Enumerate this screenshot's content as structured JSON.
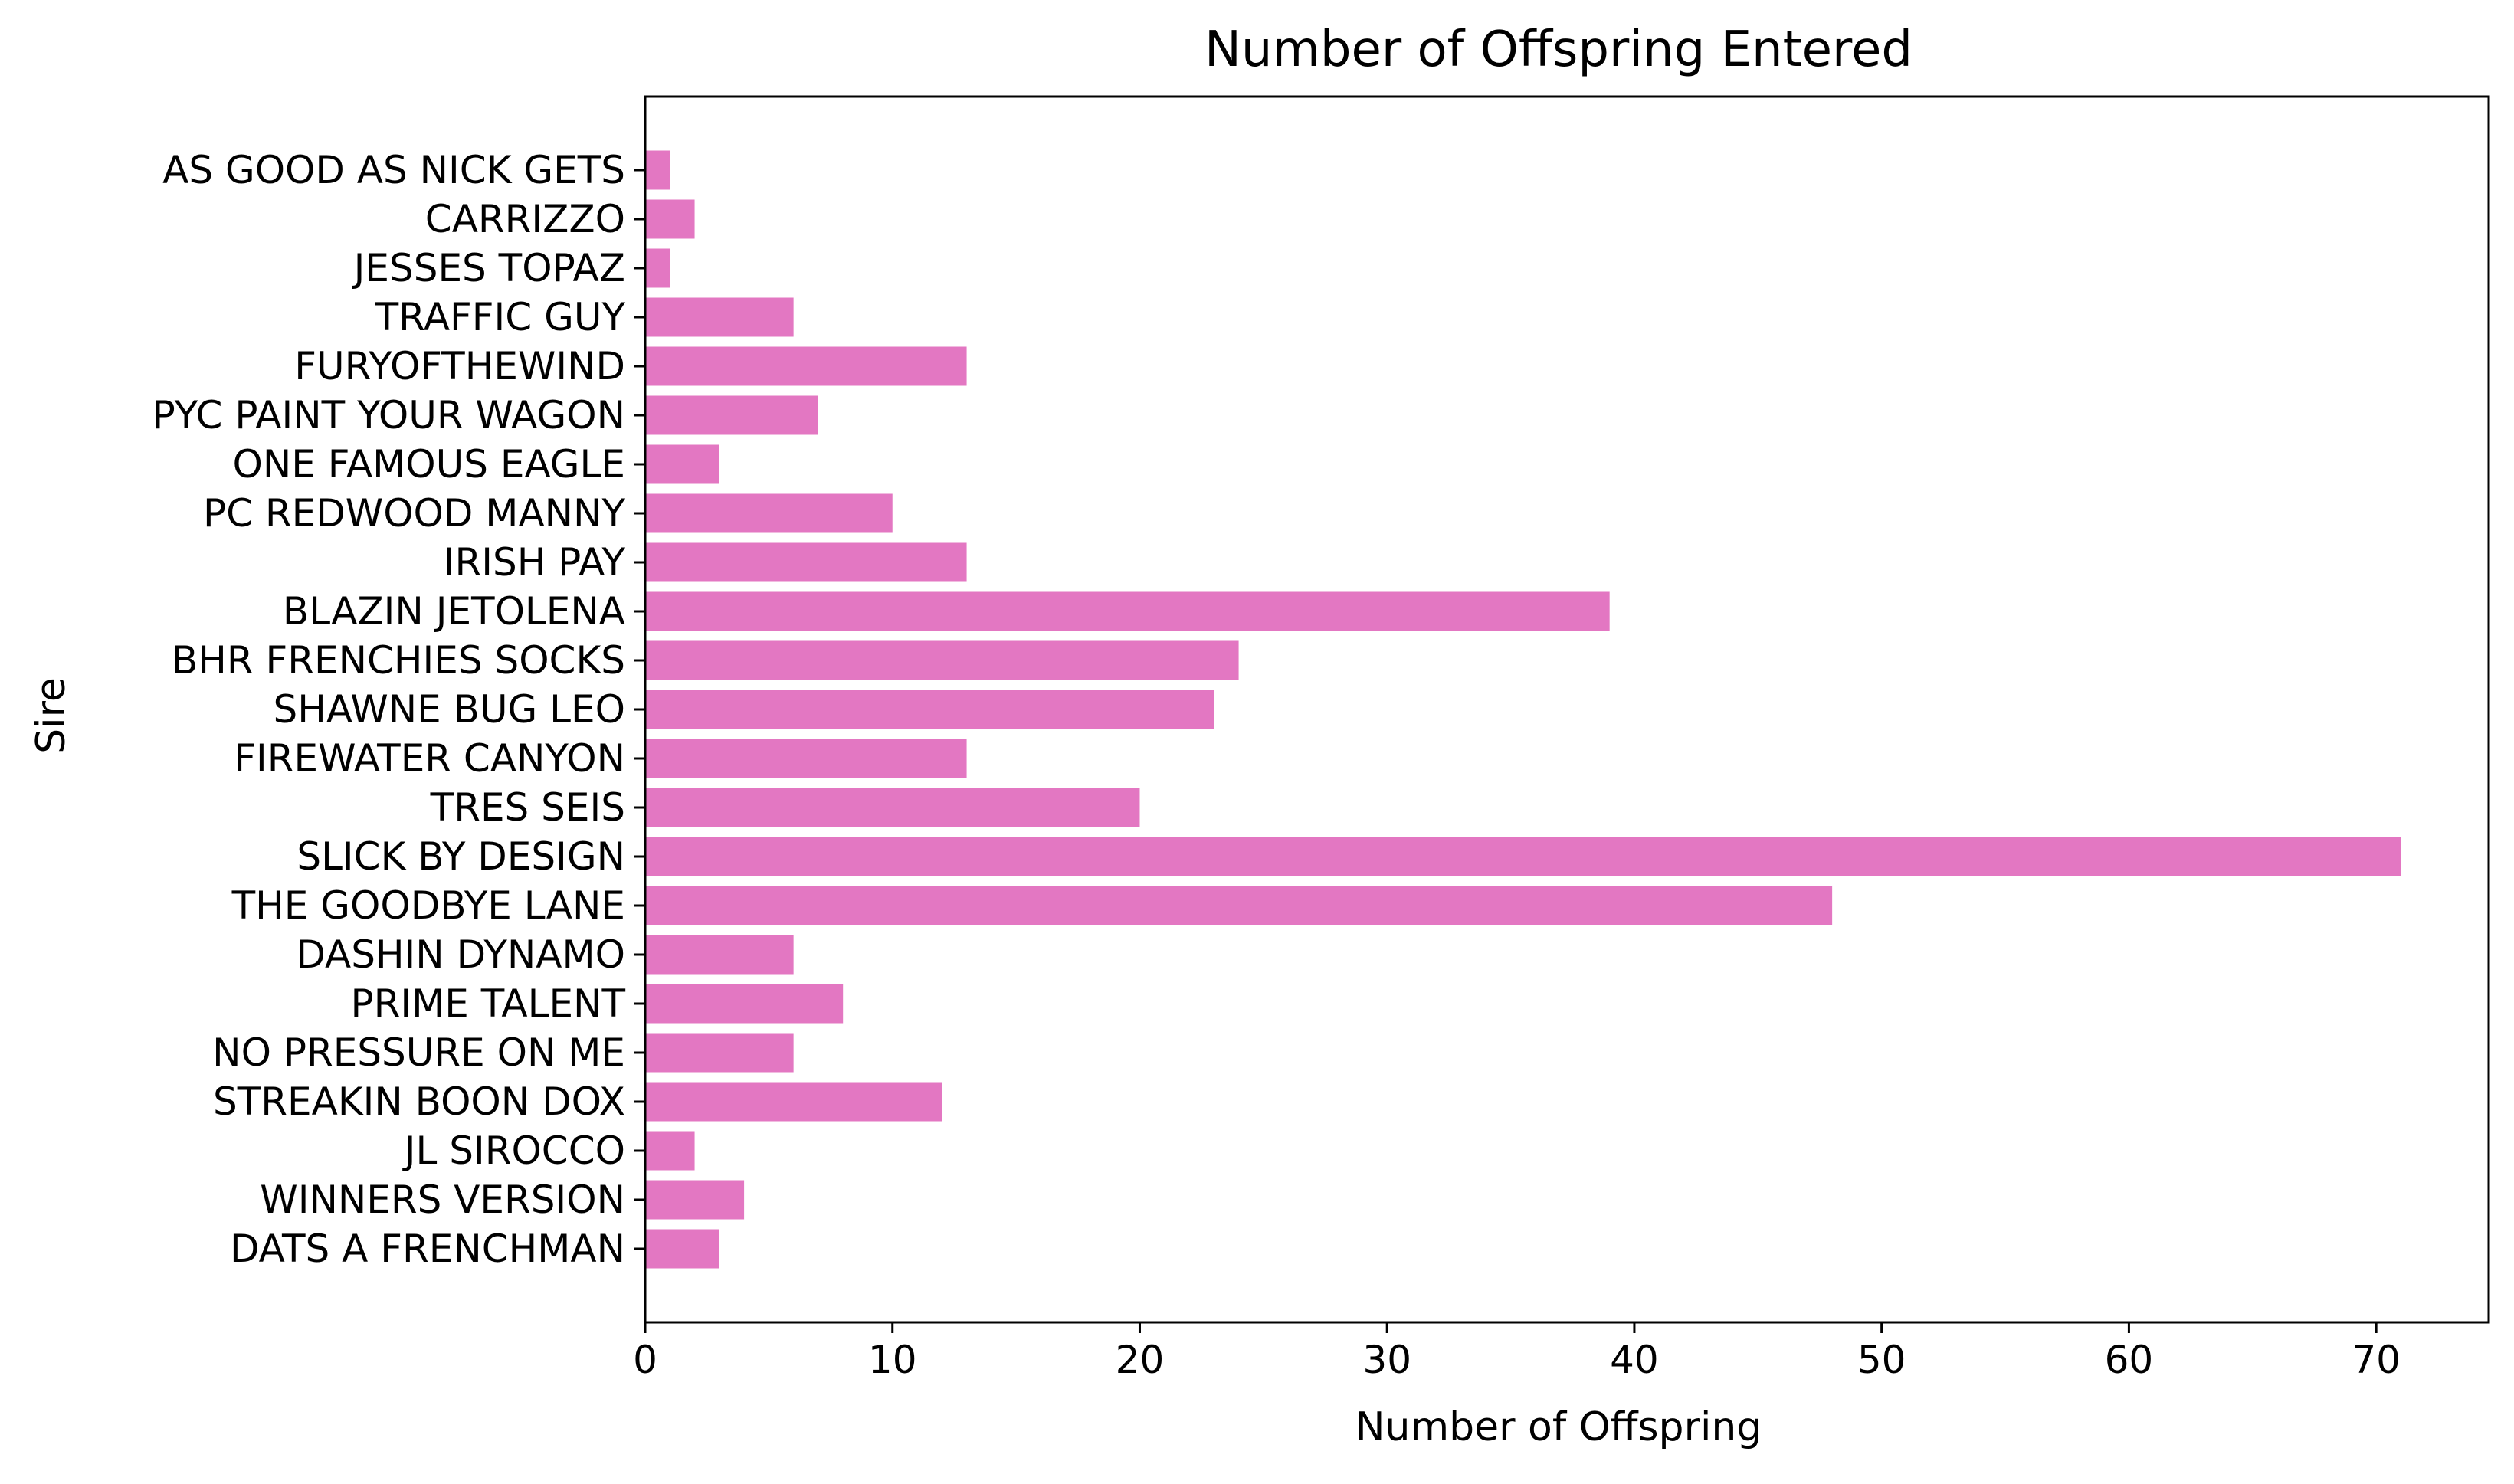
{
  "chart_data": {
    "type": "bar",
    "orientation": "horizontal",
    "title": "Number of Offspring Entered",
    "xlabel": "Number of Offspring",
    "ylabel": "Sire",
    "xlim": [
      0,
      74.55
    ],
    "xticks": [
      0,
      10,
      20,
      30,
      40,
      50,
      60,
      70
    ],
    "bar_color": "#e377c2",
    "grid": false,
    "legend": "none",
    "categories": [
      "AS GOOD AS NICK GETS",
      "CARRIZZO",
      "JESSES TOPAZ",
      "TRAFFIC GUY",
      "FURYOFTHEWIND",
      "PYC PAINT YOUR WAGON",
      "ONE FAMOUS EAGLE",
      "PC REDWOOD MANNY",
      "IRISH PAY",
      "BLAZIN JETOLENA",
      "BHR FRENCHIES SOCKS",
      "SHAWNE BUG LEO",
      "FIREWATER CANYON",
      "TRES SEIS",
      "SLICK BY DESIGN",
      "THE GOODBYE LANE",
      "DASHIN DYNAMO",
      "PRIME TALENT",
      "NO PRESSURE ON ME",
      "STREAKIN BOON DOX",
      "JL SIROCCO",
      "WINNERS VERSION",
      "DATS A FRENCHMAN"
    ],
    "values": [
      1,
      2,
      1,
      6,
      13,
      7,
      3,
      10,
      13,
      39,
      24,
      23,
      13,
      20,
      71,
      48,
      6,
      8,
      6,
      12,
      2,
      4,
      3
    ]
  }
}
